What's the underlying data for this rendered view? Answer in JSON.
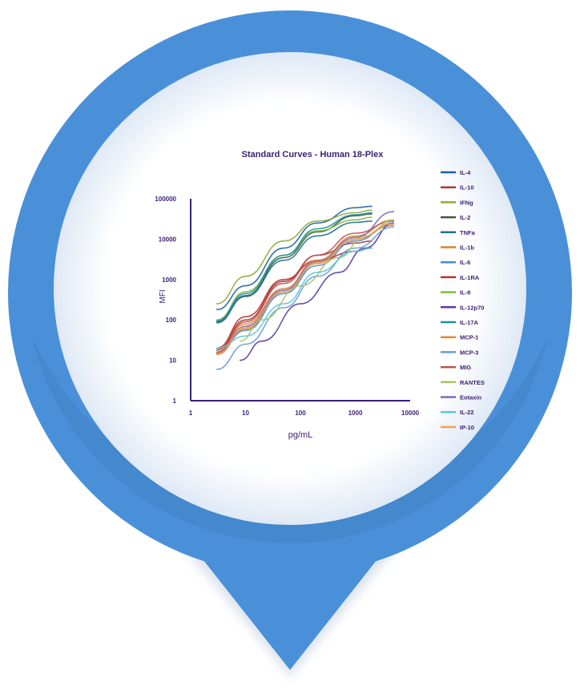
{
  "chart_data": {
    "type": "line",
    "title": "Standard Curves - Human 18-Plex",
    "xlabel": "pg/mL",
    "ylabel": "MFI",
    "xscale": "log",
    "yscale": "log",
    "xlim": [
      1,
      10000
    ],
    "ylim": [
      1,
      100000
    ],
    "xticks": [
      "1",
      "10",
      "100",
      "1000",
      "10000"
    ],
    "yticks": [
      "1",
      "10",
      "100",
      "1000",
      "10000",
      "100000"
    ],
    "grid": false,
    "legend": "right",
    "series": [
      {
        "name": "IL-4",
        "color": "#1f5fa8",
        "x": [
          3,
          10,
          50,
          200,
          1000,
          2000
        ],
        "y": [
          180,
          700,
          6000,
          25000,
          60000,
          65000
        ]
      },
      {
        "name": "IL-10",
        "color": "#a83a3a",
        "x": [
          3,
          10,
          50,
          200,
          1000,
          2000
        ],
        "y": [
          18,
          100,
          900,
          4000,
          8000,
          9000
        ]
      },
      {
        "name": "IFNg",
        "color": "#8fa83a",
        "x": [
          3,
          10,
          50,
          200,
          1000,
          2000
        ],
        "y": [
          250,
          1200,
          9000,
          28000,
          45000,
          52000
        ]
      },
      {
        "name": "IL-2",
        "color": "#3a5a3a",
        "x": [
          3,
          10,
          50,
          200,
          1000,
          2000
        ],
        "y": [
          90,
          400,
          3500,
          15000,
          38000,
          42000
        ]
      },
      {
        "name": "TNFa",
        "color": "#1f6f8f",
        "x": [
          3,
          10,
          50,
          200,
          1000,
          2000
        ],
        "y": [
          85,
          380,
          3000,
          12000,
          26000,
          28000
        ]
      },
      {
        "name": "IL-1b",
        "color": "#d9822b",
        "x": [
          3,
          10,
          50,
          200,
          1000,
          5000
        ],
        "y": [
          14,
          60,
          500,
          2500,
          10000,
          22000
        ]
      },
      {
        "name": "IL-6",
        "color": "#4a8ad1",
        "x": [
          3,
          10,
          50,
          200,
          1000,
          5000
        ],
        "y": [
          15,
          55,
          450,
          2200,
          9000,
          25000
        ]
      },
      {
        "name": "IL-1RA",
        "color": "#b8302f",
        "x": [
          3,
          10,
          50,
          200,
          1000,
          2000
        ],
        "y": [
          20,
          120,
          1000,
          3000,
          5000,
          6000
        ]
      },
      {
        "name": "IL-8",
        "color": "#7fb84a",
        "x": [
          3,
          10,
          50,
          200,
          1000,
          2000
        ],
        "y": [
          100,
          500,
          4000,
          16000,
          30000,
          35000
        ]
      },
      {
        "name": "IL-12p70",
        "color": "#5a3aa8",
        "x": [
          8,
          20,
          100,
          500,
          1500,
          5000
        ],
        "y": [
          10,
          30,
          250,
          1500,
          6000,
          25000
        ]
      },
      {
        "name": "IL-17A",
        "color": "#1f8f9f",
        "x": [
          3,
          10,
          50,
          200,
          1000,
          2000
        ],
        "y": [
          95,
          450,
          4000,
          18000,
          40000,
          45000
        ]
      },
      {
        "name": "MCP-1",
        "color": "#e68a2e",
        "x": [
          3,
          10,
          50,
          200,
          1000,
          5000
        ],
        "y": [
          15,
          80,
          600,
          3000,
          12000,
          30000
        ]
      },
      {
        "name": "MCP-3",
        "color": "#6a9ad9",
        "x": [
          3,
          10,
          50,
          200,
          1000,
          5000
        ],
        "y": [
          6,
          25,
          200,
          1200,
          6000,
          20000
        ]
      },
      {
        "name": "MIG",
        "color": "#c0504d",
        "x": [
          3,
          10,
          50,
          200,
          1000,
          5000
        ],
        "y": [
          16,
          90,
          800,
          4000,
          14000,
          28000
        ]
      },
      {
        "name": "RANTES",
        "color": "#a8c46a",
        "x": [
          8,
          20,
          100,
          500,
          1500,
          5000
        ],
        "y": [
          30,
          100,
          700,
          3500,
          12000,
          30000
        ]
      },
      {
        "name": "Eotaxin",
        "color": "#7a6ab8",
        "x": [
          3,
          10,
          50,
          200,
          1000,
          5000
        ],
        "y": [
          14,
          70,
          550,
          2800,
          11000,
          48000
        ]
      },
      {
        "name": "IL-22",
        "color": "#5ac8d9",
        "x": [
          3,
          10,
          50,
          200,
          1000,
          2000
        ],
        "y": [
          20,
          40,
          250,
          1500,
          5000,
          6000
        ]
      },
      {
        "name": "IP-10",
        "color": "#f0a050",
        "x": [
          3,
          10,
          50,
          200,
          1000,
          5000
        ],
        "y": [
          14,
          65,
          500,
          2600,
          10000,
          24000
        ]
      }
    ]
  },
  "colors": {
    "pin": "#4a90d9",
    "pin_dark": "#3f7fc2",
    "ring": "#eaf2fb",
    "axis": "#3a1f73"
  }
}
